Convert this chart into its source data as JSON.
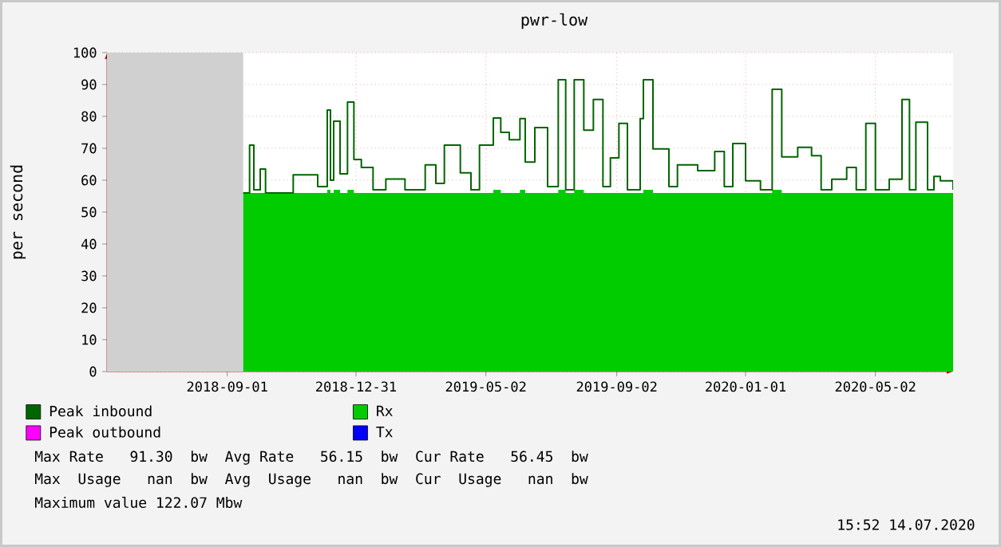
{
  "chart_data": {
    "type": "area",
    "title": "pwr-low",
    "ylabel": "per second",
    "xlim": [
      "2018-05-11",
      "2020-07-14"
    ],
    "ylim": [
      0,
      100
    ],
    "xticks": [
      "2018-09-01",
      "2018-12-31",
      "2019-05-02",
      "2019-09-02",
      "2020-01-01",
      "2020-05-02"
    ],
    "yticks": [
      0,
      10,
      20,
      30,
      40,
      50,
      60,
      70,
      80,
      90,
      100
    ],
    "grid": true,
    "legend": "bottom",
    "x": [
      "2018-09-16",
      "2018-09-22",
      "2018-09-26",
      "2018-10-02",
      "2018-10-07",
      "2018-11-02",
      "2018-11-25",
      "2018-12-04",
      "2018-12-07",
      "2018-12-10",
      "2018-12-16",
      "2018-12-23",
      "2018-12-29",
      "2019-01-05",
      "2019-01-16",
      "2019-01-28",
      "2019-02-15",
      "2019-03-06",
      "2019-03-16",
      "2019-03-24",
      "2019-04-08",
      "2019-04-18",
      "2019-04-26",
      "2019-05-09",
      "2019-05-16",
      "2019-05-24",
      "2019-06-03",
      "2019-06-08",
      "2019-06-17",
      "2019-06-29",
      "2019-07-09",
      "2019-07-16",
      "2019-07-24",
      "2019-08-02",
      "2019-08-11",
      "2019-08-20",
      "2019-08-27",
      "2019-09-04",
      "2019-09-12",
      "2019-09-24",
      "2019-09-27",
      "2019-10-06",
      "2019-10-14",
      "2019-10-21",
      "2019-10-29",
      "2019-11-17",
      "2019-12-03",
      "2019-12-12",
      "2019-12-20",
      "2020-01-01",
      "2020-01-15",
      "2020-01-26",
      "2020-02-04",
      "2020-02-19",
      "2020-03-03",
      "2020-03-12",
      "2020-03-22",
      "2020-04-05",
      "2020-04-14",
      "2020-04-23",
      "2020-05-02",
      "2020-05-15",
      "2020-05-27",
      "2020-06-03",
      "2020-06-09",
      "2020-06-20",
      "2020-06-26",
      "2020-07-02",
      "2020-07-14"
    ],
    "series": [
      {
        "name": "Peak inbound",
        "type": "step",
        "color": "#006600",
        "values": [
          56,
          71,
          57,
          63.5,
          56,
          61.7,
          58,
          82,
          60,
          78.5,
          62,
          84.5,
          66.5,
          64,
          57,
          60.4,
          57,
          64.8,
          59,
          71,
          62.3,
          57,
          71,
          79.5,
          75,
          72.7,
          79.3,
          65.7,
          76.5,
          58,
          91.5,
          57,
          91.5,
          75.7,
          85.3,
          58,
          67,
          77.8,
          57,
          79.3,
          91.5,
          69.8,
          69.8,
          58,
          64.8,
          63,
          69,
          58,
          71.5,
          59.8,
          57,
          88.5,
          67.3,
          70.3,
          67.7,
          57,
          60.3,
          64,
          57,
          77.8,
          57,
          60.3,
          85.3,
          57,
          78.2,
          57,
          61.2,
          59.8,
          57
        ]
      },
      {
        "name": "Rx",
        "color": "#00cc00",
        "values": [
          56,
          56,
          56,
          56,
          56,
          56,
          56,
          57,
          56,
          57,
          56,
          57,
          56,
          56,
          56,
          56,
          56,
          56,
          56,
          56,
          56,
          56,
          56,
          57,
          56,
          56,
          57,
          56,
          56,
          56,
          57,
          56,
          57,
          56,
          56,
          56,
          56,
          56,
          56,
          56,
          57,
          56,
          56,
          56,
          56,
          56,
          56,
          56,
          56,
          56,
          56,
          57,
          56,
          56,
          56,
          56,
          56,
          56,
          56,
          56,
          56,
          56,
          56,
          56,
          56,
          56,
          56,
          56,
          56
        ]
      },
      {
        "name": "Peak outbound",
        "type": "step",
        "color": "#ff00ff",
        "values": [
          null,
          null,
          null,
          null,
          null,
          null,
          null,
          null,
          null,
          null,
          null,
          null,
          null,
          null,
          null,
          null,
          null,
          null,
          null,
          null,
          null,
          null,
          null,
          null,
          null,
          null,
          null,
          null,
          null,
          null,
          null,
          null,
          null,
          null,
          null,
          null,
          null,
          null,
          null,
          null,
          null,
          null,
          null,
          null,
          null,
          null,
          null,
          null,
          null,
          null,
          null,
          null,
          null,
          null,
          null,
          null,
          null,
          null,
          null,
          null,
          null,
          null,
          null,
          null,
          null,
          null,
          null,
          null,
          null
        ]
      },
      {
        "name": "Tx",
        "color": "#0000ff",
        "values": [
          null,
          null,
          null,
          null,
          null,
          null,
          null,
          null,
          null,
          null,
          null,
          null,
          null,
          null,
          null,
          null,
          null,
          null,
          null,
          null,
          null,
          null,
          null,
          null,
          null,
          null,
          null,
          null,
          null,
          null,
          null,
          null,
          null,
          null,
          null,
          null,
          null,
          null,
          null,
          null,
          null,
          null,
          null,
          null,
          null,
          null,
          null,
          null,
          null,
          null,
          null,
          null,
          null,
          null,
          null,
          null,
          null,
          null,
          null,
          null,
          null,
          null,
          null,
          null,
          null,
          null,
          null,
          null,
          null
        ]
      }
    ],
    "bands": [
      {
        "axis": "x",
        "from": "2018-05-11",
        "to": "2018-09-16",
        "color": "#d0d0d0"
      }
    ],
    "annotations": [
      "Max Rate   91.30  bw  Avg Rate   56.15  bw  Cur Rate   56.45  bw",
      "Max  Usage   nan  bw  Avg  Usage   nan  bw  Cur  Usage   nan  bw",
      "Maximum value 122.07 Mbw",
      "15:52 14.07.2020"
    ]
  }
}
